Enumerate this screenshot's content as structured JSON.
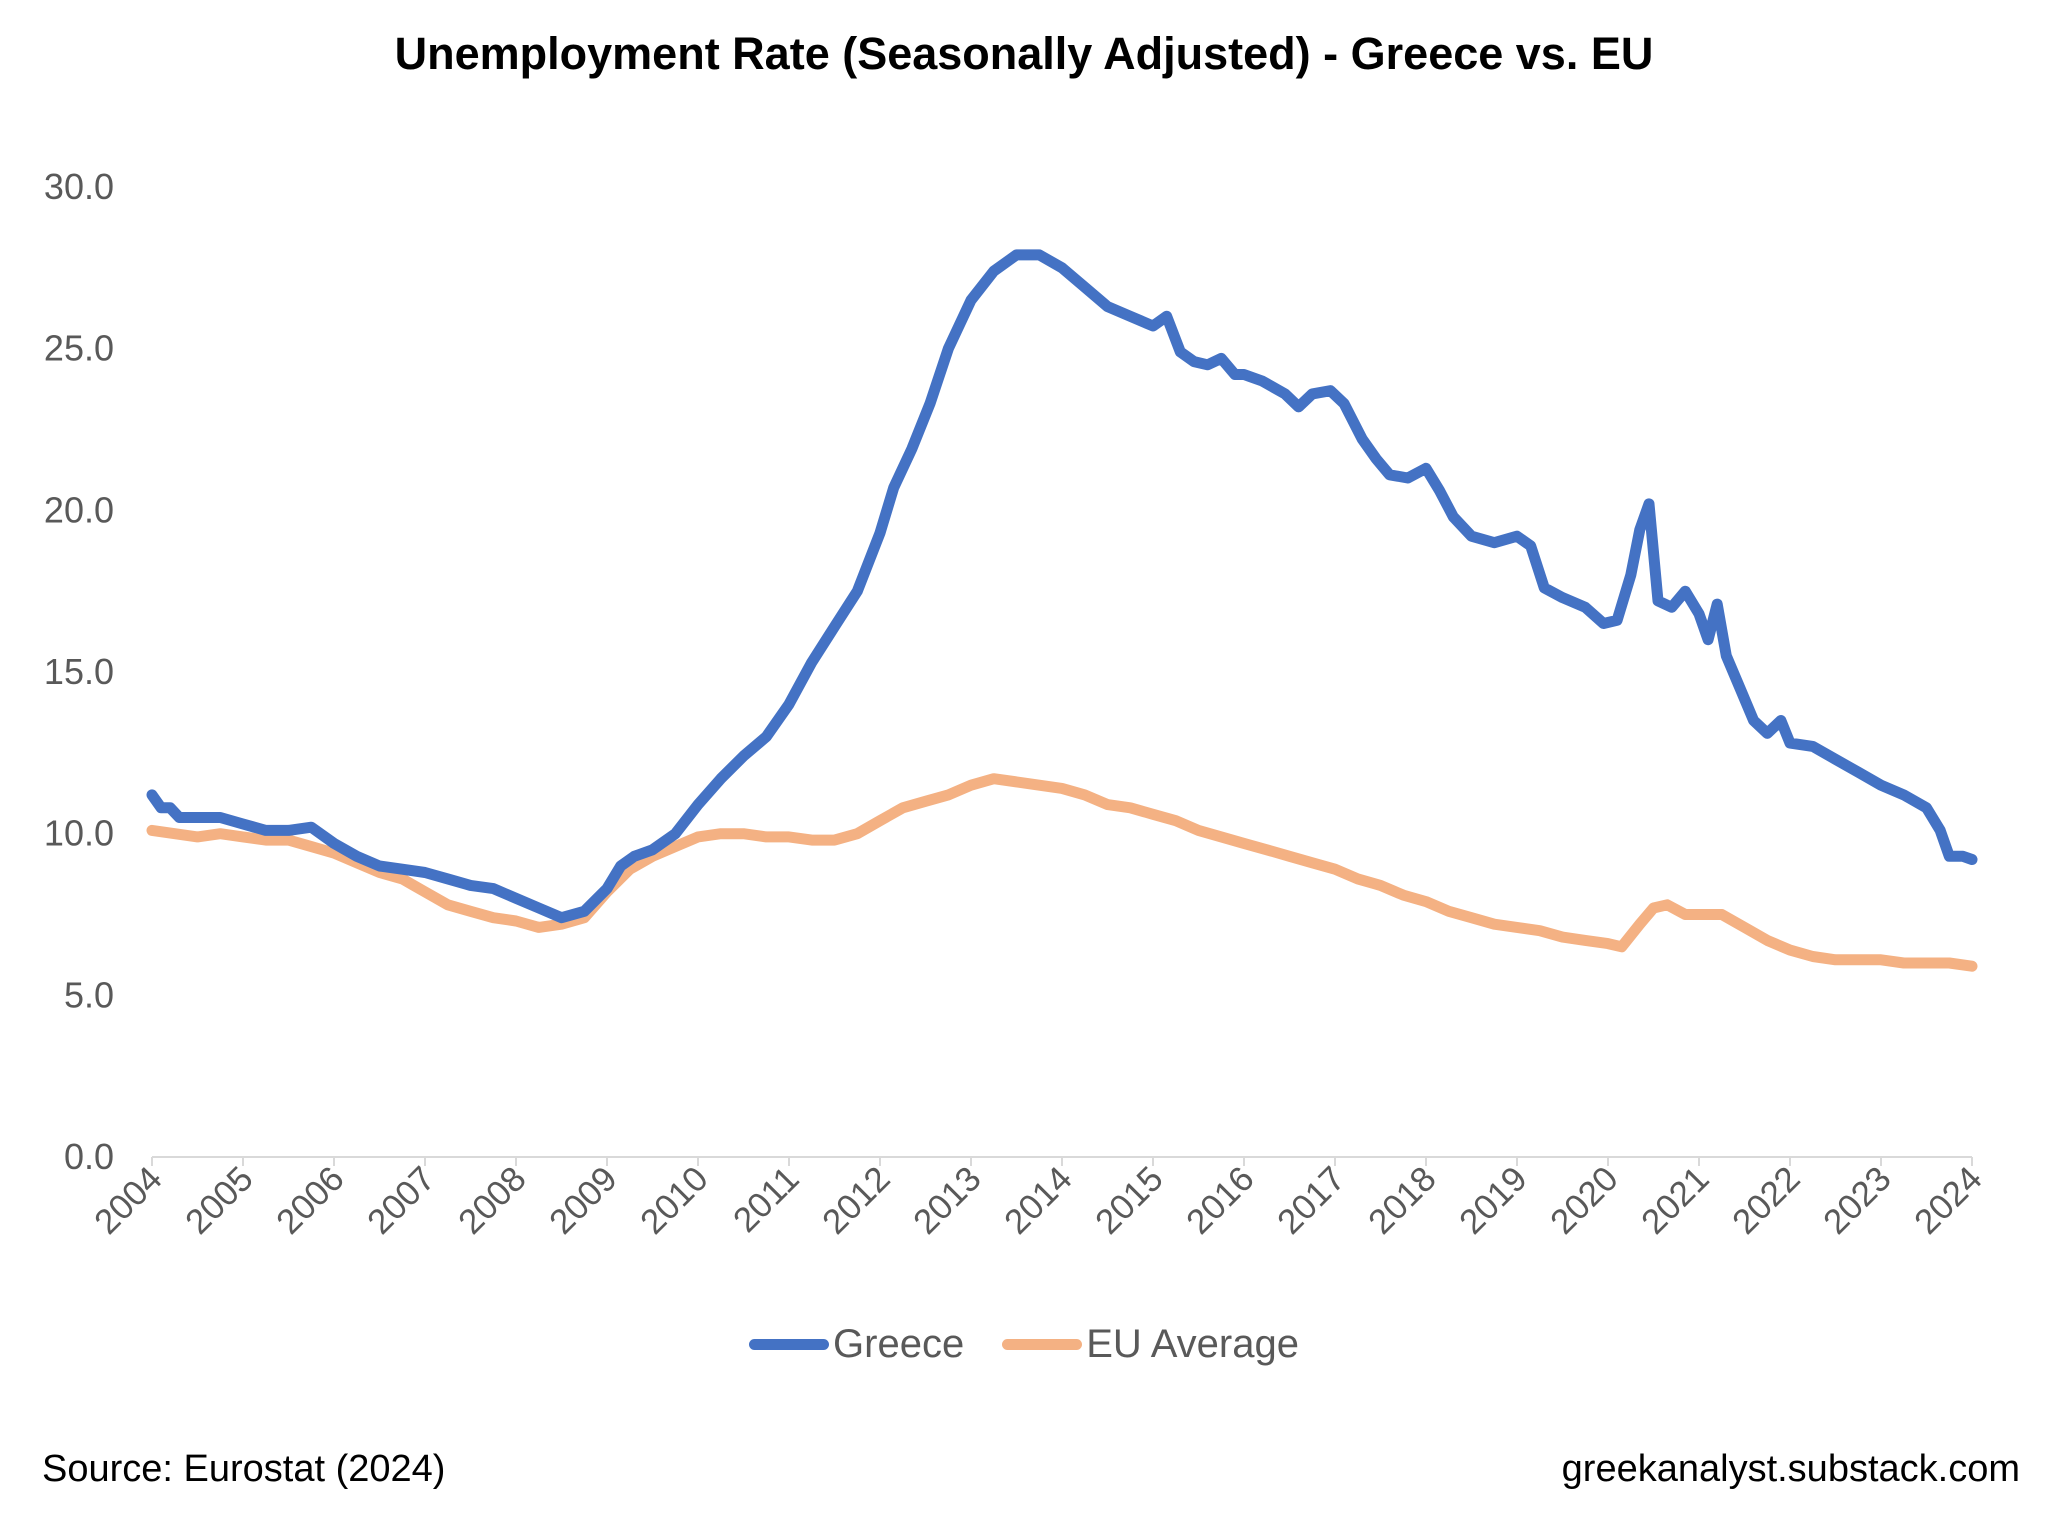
{
  "title": "Unemployment Rate (Seasonally Adjusted) - Greece vs. EU",
  "source": "Source: Eurostat (2024)",
  "site": "greekanalyst.substack.com",
  "colors": {
    "greece": "#4472C4",
    "eu": "#F4B183",
    "axis": "#D9D9D9",
    "tick_text": "#595959"
  },
  "chart_data": {
    "type": "line",
    "title": "Unemployment Rate (Seasonally Adjusted) - Greece vs. EU",
    "xlabel": "",
    "ylabel": "",
    "ylim": [
      0,
      30
    ],
    "xlim": [
      2004,
      2024
    ],
    "yticks": [
      "0.0",
      "5.0",
      "10.0",
      "15.0",
      "20.0",
      "25.0",
      "30.0"
    ],
    "xticks": [
      "2004",
      "2005",
      "2006",
      "2007",
      "2008",
      "2009",
      "2010",
      "2011",
      "2012",
      "2013",
      "2014",
      "2015",
      "2016",
      "2017",
      "2018",
      "2019",
      "2020",
      "2021",
      "2022",
      "2023",
      "2024"
    ],
    "grid": false,
    "legend_position": "bottom",
    "series": [
      {
        "name": "Greece",
        "color": "#4472C4",
        "points": [
          [
            2004.0,
            11.2
          ],
          [
            2004.1,
            10.8
          ],
          [
            2004.2,
            10.8
          ],
          [
            2004.3,
            10.5
          ],
          [
            2004.5,
            10.5
          ],
          [
            2004.75,
            10.5
          ],
          [
            2005.0,
            10.3
          ],
          [
            2005.25,
            10.1
          ],
          [
            2005.5,
            10.1
          ],
          [
            2005.75,
            10.2
          ],
          [
            2006.0,
            9.7
          ],
          [
            2006.25,
            9.3
          ],
          [
            2006.5,
            9.0
          ],
          [
            2006.75,
            8.9
          ],
          [
            2007.0,
            8.8
          ],
          [
            2007.25,
            8.6
          ],
          [
            2007.5,
            8.4
          ],
          [
            2007.75,
            8.3
          ],
          [
            2008.0,
            8.0
          ],
          [
            2008.25,
            7.7
          ],
          [
            2008.5,
            7.4
          ],
          [
            2008.75,
            7.6
          ],
          [
            2009.0,
            8.3
          ],
          [
            2009.15,
            9.0
          ],
          [
            2009.3,
            9.3
          ],
          [
            2009.5,
            9.5
          ],
          [
            2009.75,
            10.0
          ],
          [
            2010.0,
            10.9
          ],
          [
            2010.25,
            11.7
          ],
          [
            2010.5,
            12.4
          ],
          [
            2010.75,
            13.0
          ],
          [
            2011.0,
            14.0
          ],
          [
            2011.25,
            15.3
          ],
          [
            2011.5,
            16.4
          ],
          [
            2011.75,
            17.5
          ],
          [
            2012.0,
            19.3
          ],
          [
            2012.15,
            20.7
          ],
          [
            2012.35,
            21.9
          ],
          [
            2012.55,
            23.3
          ],
          [
            2012.75,
            25.0
          ],
          [
            2013.0,
            26.5
          ],
          [
            2013.25,
            27.4
          ],
          [
            2013.5,
            27.9
          ],
          [
            2013.75,
            27.9
          ],
          [
            2014.0,
            27.5
          ],
          [
            2014.25,
            26.9
          ],
          [
            2014.5,
            26.3
          ],
          [
            2014.75,
            26.0
          ],
          [
            2015.0,
            25.7
          ],
          [
            2015.15,
            26.0
          ],
          [
            2015.3,
            24.9
          ],
          [
            2015.45,
            24.6
          ],
          [
            2015.6,
            24.5
          ],
          [
            2015.75,
            24.7
          ],
          [
            2015.9,
            24.2
          ],
          [
            2016.0,
            24.2
          ],
          [
            2016.2,
            24.0
          ],
          [
            2016.45,
            23.6
          ],
          [
            2016.6,
            23.2
          ],
          [
            2016.75,
            23.6
          ],
          [
            2016.95,
            23.7
          ],
          [
            2017.1,
            23.3
          ],
          [
            2017.3,
            22.2
          ],
          [
            2017.45,
            21.6
          ],
          [
            2017.6,
            21.1
          ],
          [
            2017.8,
            21.0
          ],
          [
            2018.0,
            21.3
          ],
          [
            2018.15,
            20.6
          ],
          [
            2018.3,
            19.8
          ],
          [
            2018.5,
            19.2
          ],
          [
            2018.75,
            19.0
          ],
          [
            2019.0,
            19.2
          ],
          [
            2019.15,
            18.9
          ],
          [
            2019.3,
            17.6
          ],
          [
            2019.5,
            17.3
          ],
          [
            2019.75,
            17.0
          ],
          [
            2019.95,
            16.5
          ],
          [
            2020.1,
            16.6
          ],
          [
            2020.25,
            18.0
          ],
          [
            2020.35,
            19.4
          ],
          [
            2020.45,
            20.2
          ],
          [
            2020.55,
            17.2
          ],
          [
            2020.7,
            17.0
          ],
          [
            2020.85,
            17.5
          ],
          [
            2021.0,
            16.8
          ],
          [
            2021.1,
            16.0
          ],
          [
            2021.2,
            17.1
          ],
          [
            2021.3,
            15.5
          ],
          [
            2021.45,
            14.5
          ],
          [
            2021.6,
            13.5
          ],
          [
            2021.75,
            13.1
          ],
          [
            2021.9,
            13.5
          ],
          [
            2022.0,
            12.8
          ],
          [
            2022.25,
            12.7
          ],
          [
            2022.5,
            12.3
          ],
          [
            2022.75,
            11.9
          ],
          [
            2023.0,
            11.5
          ],
          [
            2023.25,
            11.2
          ],
          [
            2023.5,
            10.8
          ],
          [
            2023.65,
            10.1
          ],
          [
            2023.75,
            9.3
          ],
          [
            2023.9,
            9.3
          ],
          [
            2024.0,
            9.2
          ]
        ]
      },
      {
        "name": "EU Average",
        "color": "#F4B183",
        "points": [
          [
            2004.0,
            10.1
          ],
          [
            2004.25,
            10.0
          ],
          [
            2004.5,
            9.9
          ],
          [
            2004.75,
            10.0
          ],
          [
            2005.0,
            9.9
          ],
          [
            2005.25,
            9.8
          ],
          [
            2005.5,
            9.8
          ],
          [
            2005.75,
            9.6
          ],
          [
            2006.0,
            9.4
          ],
          [
            2006.25,
            9.1
          ],
          [
            2006.5,
            8.8
          ],
          [
            2006.75,
            8.6
          ],
          [
            2007.0,
            8.2
          ],
          [
            2007.25,
            7.8
          ],
          [
            2007.5,
            7.6
          ],
          [
            2007.75,
            7.4
          ],
          [
            2008.0,
            7.3
          ],
          [
            2008.25,
            7.1
          ],
          [
            2008.5,
            7.2
          ],
          [
            2008.75,
            7.4
          ],
          [
            2009.0,
            8.2
          ],
          [
            2009.25,
            8.9
          ],
          [
            2009.5,
            9.3
          ],
          [
            2009.75,
            9.6
          ],
          [
            2010.0,
            9.9
          ],
          [
            2010.25,
            10.0
          ],
          [
            2010.5,
            10.0
          ],
          [
            2010.75,
            9.9
          ],
          [
            2011.0,
            9.9
          ],
          [
            2011.25,
            9.8
          ],
          [
            2011.5,
            9.8
          ],
          [
            2011.75,
            10.0
          ],
          [
            2012.0,
            10.4
          ],
          [
            2012.25,
            10.8
          ],
          [
            2012.5,
            11.0
          ],
          [
            2012.75,
            11.2
          ],
          [
            2013.0,
            11.5
          ],
          [
            2013.25,
            11.7
          ],
          [
            2013.5,
            11.6
          ],
          [
            2013.75,
            11.5
          ],
          [
            2014.0,
            11.4
          ],
          [
            2014.25,
            11.2
          ],
          [
            2014.5,
            10.9
          ],
          [
            2014.75,
            10.8
          ],
          [
            2015.0,
            10.6
          ],
          [
            2015.25,
            10.4
          ],
          [
            2015.5,
            10.1
          ],
          [
            2015.75,
            9.9
          ],
          [
            2016.0,
            9.7
          ],
          [
            2016.25,
            9.5
          ],
          [
            2016.5,
            9.3
          ],
          [
            2016.75,
            9.1
          ],
          [
            2017.0,
            8.9
          ],
          [
            2017.25,
            8.6
          ],
          [
            2017.5,
            8.4
          ],
          [
            2017.75,
            8.1
          ],
          [
            2018.0,
            7.9
          ],
          [
            2018.25,
            7.6
          ],
          [
            2018.5,
            7.4
          ],
          [
            2018.75,
            7.2
          ],
          [
            2019.0,
            7.1
          ],
          [
            2019.25,
            7.0
          ],
          [
            2019.5,
            6.8
          ],
          [
            2019.75,
            6.7
          ],
          [
            2020.0,
            6.6
          ],
          [
            2020.15,
            6.5
          ],
          [
            2020.35,
            7.2
          ],
          [
            2020.5,
            7.7
          ],
          [
            2020.65,
            7.8
          ],
          [
            2020.85,
            7.5
          ],
          [
            2021.0,
            7.5
          ],
          [
            2021.25,
            7.5
          ],
          [
            2021.5,
            7.1
          ],
          [
            2021.75,
            6.7
          ],
          [
            2022.0,
            6.4
          ],
          [
            2022.25,
            6.2
          ],
          [
            2022.5,
            6.1
          ],
          [
            2022.75,
            6.1
          ],
          [
            2023.0,
            6.1
          ],
          [
            2023.25,
            6.0
          ],
          [
            2023.5,
            6.0
          ],
          [
            2023.75,
            6.0
          ],
          [
            2024.0,
            5.9
          ]
        ]
      }
    ]
  }
}
